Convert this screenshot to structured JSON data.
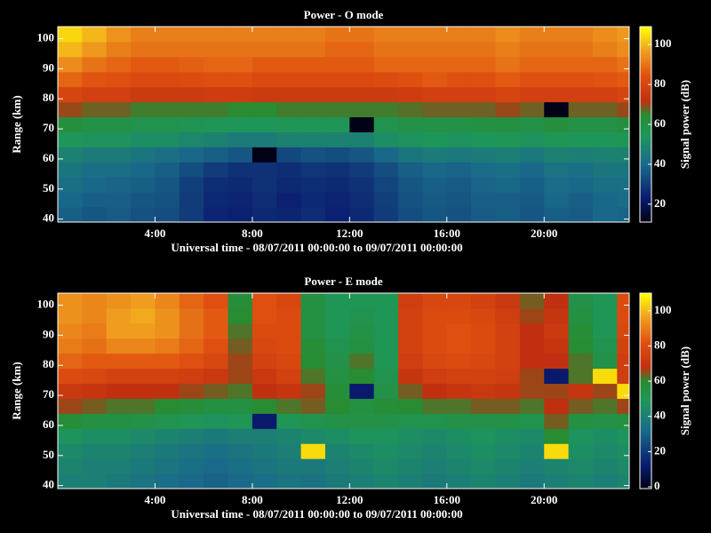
{
  "chart_data": [
    {
      "type": "heatmap",
      "title": "Power - O mode",
      "xlabel": "Universal time - 08/07/2011 00:00:00 to 09/07/2011 00:00:00",
      "ylabel": "Range (km)",
      "zlabel": "Signal power (dB)",
      "xbins": [
        0,
        1,
        2,
        3,
        4,
        5,
        6,
        7,
        8,
        9,
        10,
        11,
        12,
        13,
        14,
        15,
        16,
        17,
        18,
        19,
        20,
        21,
        22,
        23,
        23.5
      ],
      "ybins": [
        39,
        44,
        49,
        54,
        59,
        64,
        69,
        74,
        79,
        84,
        89,
        94,
        99,
        104
      ],
      "xlim": [
        0,
        23.5
      ],
      "ylim": [
        39,
        104
      ],
      "zlim": [
        11,
        109
      ],
      "xticks": [
        {
          "value": 4,
          "label": "4:00"
        },
        {
          "value": 8,
          "label": "8:00"
        },
        {
          "value": 12,
          "label": "12:00"
        },
        {
          "value": 16,
          "label": "16:00"
        },
        {
          "value": 20,
          "label": "20:00"
        }
      ],
      "yticks": [
        40,
        50,
        60,
        70,
        80,
        90,
        100
      ],
      "zticks": [
        20,
        40,
        60,
        80,
        100
      ],
      "z": [
        [
          38,
          36,
          37,
          35,
          34,
          30,
          25,
          24,
          26,
          25,
          27,
          24,
          26,
          30,
          34,
          36,
          35,
          37,
          38,
          36,
          38,
          37,
          40,
          39
        ],
        [
          40,
          38,
          38,
          36,
          35,
          30,
          26,
          25,
          27,
          24,
          26,
          25,
          27,
          31,
          35,
          37,
          36,
          38,
          38,
          37,
          40,
          38,
          40,
          41
        ],
        [
          42,
          40,
          39,
          38,
          36,
          31,
          27,
          26,
          28,
          26,
          27,
          26,
          28,
          32,
          36,
          38,
          37,
          39,
          40,
          38,
          41,
          40,
          42,
          42
        ],
        [
          44,
          42,
          42,
          40,
          38,
          34,
          30,
          28,
          28,
          27,
          29,
          28,
          30,
          34,
          38,
          40,
          39,
          41,
          42,
          40,
          43,
          42,
          44,
          44
        ],
        [
          48,
          46,
          46,
          44,
          42,
          40,
          38,
          36,
          12,
          33,
          35,
          34,
          36,
          40,
          44,
          46,
          45,
          46,
          47,
          45,
          48,
          47,
          48,
          48
        ],
        [
          55,
          54,
          54,
          52,
          52,
          50,
          48,
          46,
          46,
          48,
          48,
          48,
          48,
          52,
          54,
          55,
          54,
          55,
          56,
          54,
          56,
          55,
          55,
          56
        ],
        [
          62,
          60,
          60,
          58,
          58,
          57,
          56,
          55,
          55,
          56,
          56,
          56,
          12,
          58,
          60,
          60,
          60,
          61,
          61,
          60,
          62,
          60,
          60,
          62
        ],
        [
          70,
          68,
          68,
          66,
          66,
          66,
          66,
          65,
          65,
          66,
          66,
          66,
          66,
          66,
          67,
          68,
          68,
          68,
          70,
          68,
          12,
          68,
          68,
          70
        ],
        [
          80,
          78,
          78,
          76,
          76,
          76,
          77,
          77,
          76,
          76,
          76,
          76,
          76,
          76,
          77,
          78,
          78,
          78,
          80,
          78,
          78,
          78,
          78,
          80
        ],
        [
          88,
          85,
          84,
          82,
          82,
          83,
          84,
          84,
          82,
          82,
          82,
          82,
          82,
          83,
          84,
          86,
          84,
          84,
          86,
          84,
          84,
          84,
          85,
          86
        ],
        [
          94,
          90,
          88,
          86,
          86,
          87,
          88,
          88,
          86,
          86,
          86,
          86,
          86,
          88,
          88,
          88,
          88,
          88,
          90,
          88,
          88,
          88,
          88,
          90
        ],
        [
          100,
          96,
          92,
          90,
          90,
          90,
          90,
          90,
          90,
          90,
          90,
          88,
          88,
          90,
          90,
          90,
          90,
          90,
          92,
          90,
          90,
          90,
          92,
          94
        ],
        [
          104,
          100,
          95,
          92,
          92,
          92,
          92,
          92,
          92,
          92,
          92,
          90,
          90,
          92,
          92,
          92,
          92,
          92,
          94,
          92,
          92,
          92,
          94,
          96
        ]
      ]
    },
    {
      "type": "heatmap",
      "title": "Power - E mode",
      "xlabel": "Universal time - 08/07/2011 00:00:00 to 09/07/2011 00:00:00",
      "ylabel": "Range (km)",
      "zlabel": "Signal power (dB)",
      "xbins": [
        0,
        1,
        2,
        3,
        4,
        5,
        6,
        7,
        8,
        9,
        10,
        11,
        12,
        13,
        14,
        15,
        16,
        17,
        18,
        19,
        20,
        21,
        22,
        23,
        23.5
      ],
      "ybins": [
        39,
        44,
        49,
        54,
        59,
        64,
        69,
        74,
        79,
        84,
        89,
        94,
        99,
        104
      ],
      "xlim": [
        0,
        23.5
      ],
      "ylim": [
        39,
        104
      ],
      "zlim": [
        -1,
        110
      ],
      "xticks": [
        {
          "value": 4,
          "label": "4:00"
        },
        {
          "value": 8,
          "label": "8:00"
        },
        {
          "value": 12,
          "label": "12:00"
        },
        {
          "value": 16,
          "label": "16:00"
        },
        {
          "value": 20,
          "label": "20:00"
        }
      ],
      "yticks": [
        40,
        50,
        60,
        70,
        80,
        90,
        100
      ],
      "zticks": [
        0,
        20,
        40,
        60,
        80,
        100
      ],
      "z": [
        [
          40,
          40,
          38,
          36,
          34,
          32,
          30,
          32,
          34,
          36,
          35,
          38,
          40,
          42,
          40,
          38,
          40,
          42,
          40,
          38,
          40,
          42,
          40,
          42
        ],
        [
          42,
          40,
          40,
          38,
          36,
          34,
          32,
          34,
          36,
          38,
          38,
          40,
          42,
          44,
          42,
          40,
          42,
          44,
          42,
          40,
          42,
          44,
          42,
          44
        ],
        [
          44,
          42,
          42,
          40,
          38,
          36,
          34,
          36,
          38,
          40,
          105,
          42,
          44,
          46,
          44,
          42,
          44,
          46,
          44,
          42,
          105,
          46,
          44,
          46
        ],
        [
          48,
          46,
          46,
          44,
          42,
          40,
          38,
          40,
          40,
          42,
          44,
          46,
          48,
          48,
          46,
          44,
          46,
          48,
          46,
          44,
          60,
          48,
          46,
          48
        ],
        [
          58,
          56,
          55,
          54,
          52,
          50,
          48,
          50,
          12,
          50,
          52,
          54,
          54,
          54,
          52,
          52,
          54,
          54,
          54,
          52,
          64,
          56,
          54,
          56
        ],
        [
          66,
          64,
          62,
          62,
          60,
          58,
          56,
          56,
          60,
          62,
          64,
          60,
          56,
          58,
          60,
          62,
          62,
          64,
          64,
          62,
          68,
          64,
          62,
          66
        ],
        [
          72,
          70,
          68,
          68,
          68,
          66,
          64,
          62,
          68,
          70,
          66,
          58,
          12,
          54,
          64,
          68,
          70,
          72,
          70,
          66,
          66,
          70,
          66,
          105
        ],
        [
          80,
          78,
          76,
          76,
          76,
          74,
          72,
          66,
          72,
          76,
          62,
          56,
          60,
          52,
          70,
          74,
          76,
          76,
          74,
          66,
          12,
          62,
          105,
          74
        ],
        [
          86,
          84,
          84,
          84,
          84,
          82,
          78,
          66,
          76,
          78,
          60,
          54,
          62,
          50,
          74,
          78,
          80,
          78,
          76,
          68,
          68,
          62,
          54,
          74
        ],
        [
          90,
          88,
          92,
          92,
          90,
          86,
          82,
          64,
          78,
          80,
          58,
          52,
          56,
          50,
          76,
          80,
          82,
          80,
          76,
          68,
          70,
          60,
          52,
          76
        ],
        [
          92,
          90,
          96,
          96,
          94,
          88,
          84,
          62,
          80,
          80,
          56,
          50,
          54,
          50,
          76,
          80,
          82,
          80,
          76,
          68,
          72,
          58,
          50,
          78
        ],
        [
          94,
          92,
          96,
          98,
          94,
          88,
          84,
          60,
          82,
          80,
          56,
          50,
          52,
          50,
          76,
          80,
          80,
          78,
          74,
          66,
          70,
          56,
          50,
          80
        ],
        [
          94,
          92,
          94,
          96,
          92,
          86,
          82,
          58,
          82,
          78,
          56,
          50,
          50,
          50,
          74,
          78,
          78,
          76,
          72,
          64,
          68,
          54,
          50,
          80
        ]
      ]
    }
  ]
}
